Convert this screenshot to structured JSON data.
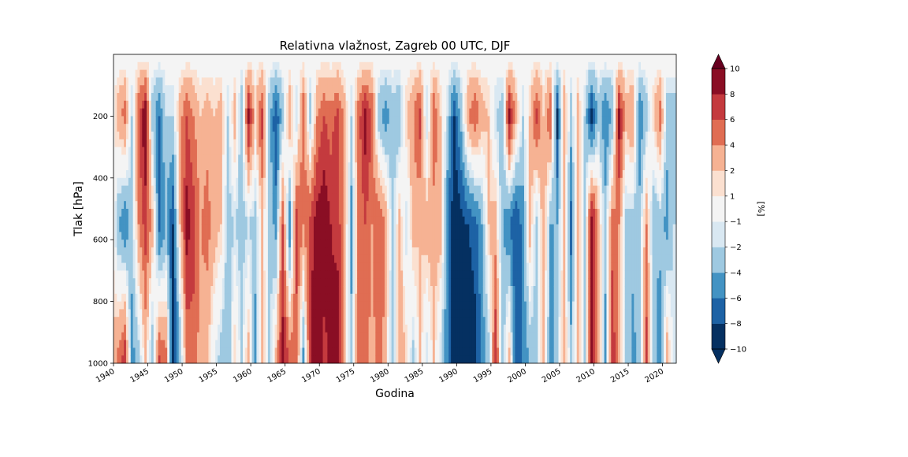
{
  "chart_data": {
    "type": "heatmap",
    "title": "Relativna vlažnost, Zagreb 00 UTC, DJF",
    "xlabel": "Godina",
    "ylabel": "Tlak [hPa]",
    "xlim": [
      1940,
      2022
    ],
    "ylim": [
      1000,
      0
    ],
    "x_ticks": [
      "1940",
      "1945",
      "1950",
      "1955",
      "1960",
      "1965",
      "1970",
      "1975",
      "1980",
      "1985",
      "1990",
      "1995",
      "2000",
      "2005",
      "2010",
      "2015",
      "2020"
    ],
    "y_ticks": [
      "200",
      "400",
      "600",
      "800",
      "1000"
    ],
    "colorbar": {
      "label": "[%]",
      "levels": [
        -10,
        -8,
        -6,
        -4,
        -2,
        -1,
        1,
        2,
        4,
        6,
        8,
        10
      ],
      "tick_labels": [
        "10",
        "8",
        "6",
        "4",
        "2",
        "1",
        "−1",
        "−2",
        "−4",
        "−6",
        "−8",
        "−10"
      ],
      "extend": "both",
      "colors": [
        "#053061",
        "#1d62a5",
        "#4393c3",
        "#9ec9e1",
        "#d9e8f2",
        "#f4f4f4",
        "#fbe0d0",
        "#f6b293",
        "#e06d53",
        "#c43a3e",
        "#8a0e24"
      ],
      "under_color": "#053061",
      "over_color": "#67001f",
      "colormap": "RdBu_r"
    },
    "grid": false,
    "columns": [
      {
        "year": 1940,
        "u": 0,
        "m": 2,
        "l": 2
      },
      {
        "year": 1941,
        "u": 3,
        "m": -4,
        "l": 5
      },
      {
        "year": 1942,
        "u": 5,
        "m": -6,
        "l": 8
      },
      {
        "year": 1943,
        "u": -2,
        "m": -3,
        "l": -5
      },
      {
        "year": 1944,
        "u": 6,
        "m": 4,
        "l": -3
      },
      {
        "year": 1945,
        "u": 10,
        "m": 7,
        "l": 2
      },
      {
        "year": 1946,
        "u": -3,
        "m": 3,
        "l": -4
      },
      {
        "year": 1947,
        "u": -6,
        "m": -7,
        "l": 7
      },
      {
        "year": 1948,
        "u": -2,
        "m": -4,
        "l": 5
      },
      {
        "year": 1949,
        "u": -2,
        "m": -8,
        "l": -10
      },
      {
        "year": 1950,
        "u": 3,
        "m": 2,
        "l": -4
      },
      {
        "year": 1951,
        "u": 6,
        "m": 9,
        "l": 4
      },
      {
        "year": 1952,
        "u": 4,
        "m": 7,
        "l": 5
      },
      {
        "year": 1953,
        "u": 2,
        "m": 4,
        "l": 3
      },
      {
        "year": 1954,
        "u": 3,
        "m": 5,
        "l": 2
      },
      {
        "year": 1955,
        "u": 2,
        "m": 3,
        "l": -1
      },
      {
        "year": 1956,
        "u": 3,
        "m": 2,
        "l": -3
      },
      {
        "year": 1957,
        "u": -2,
        "m": -3,
        "l": -4
      },
      {
        "year": 1958,
        "u": 3,
        "m": -2,
        "l": 2
      },
      {
        "year": 1959,
        "u": -4,
        "m": -3,
        "l": -2
      },
      {
        "year": 1960,
        "u": 9,
        "m": -2,
        "l": 3
      },
      {
        "year": 1961,
        "u": 2,
        "m": -3,
        "l": -5
      },
      {
        "year": 1962,
        "u": 7,
        "m": 2,
        "l": 4
      },
      {
        "year": 1963,
        "u": -3,
        "m": -2,
        "l": -3
      },
      {
        "year": 1964,
        "u": -8,
        "m": -5,
        "l": 3
      },
      {
        "year": 1965,
        "u": -3,
        "m": 6,
        "l": 9
      },
      {
        "year": 1966,
        "u": 4,
        "m": -6,
        "l": 6
      },
      {
        "year": 1967,
        "u": -2,
        "m": 7,
        "l": 5
      },
      {
        "year": 1968,
        "u": 6,
        "m": 4,
        "l": -5
      },
      {
        "year": 1969,
        "u": -3,
        "m": 7,
        "l": 8
      },
      {
        "year": 1970,
        "u": 4,
        "m": 9,
        "l": 10
      },
      {
        "year": 1971,
        "u": 6,
        "m": 10,
        "l": 7
      },
      {
        "year": 1972,
        "u": 5,
        "m": 8,
        "l": 9
      },
      {
        "year": 1973,
        "u": 7,
        "m": 7,
        "l": 10
      },
      {
        "year": 1974,
        "u": 3,
        "m": 4,
        "l": 2
      },
      {
        "year": 1975,
        "u": -2,
        "m": -5,
        "l": -3
      },
      {
        "year": 1976,
        "u": 5,
        "m": 4,
        "l": 6
      },
      {
        "year": 1977,
        "u": 9,
        "m": 6,
        "l": 5
      },
      {
        "year": 1978,
        "u": 6,
        "m": 4,
        "l": 3
      },
      {
        "year": 1979,
        "u": -3,
        "m": 6,
        "l": 5
      },
      {
        "year": 1980,
        "u": -5,
        "m": 4,
        "l": 3
      },
      {
        "year": 1981,
        "u": -3,
        "m": -3,
        "l": -4
      },
      {
        "year": 1982,
        "u": -4,
        "m": 3,
        "l": 4
      },
      {
        "year": 1983,
        "u": 2,
        "m": -2,
        "l": 2
      },
      {
        "year": 1984,
        "u": 4,
        "m": 3,
        "l": -3
      },
      {
        "year": 1985,
        "u": 7,
        "m": 2,
        "l": 2
      },
      {
        "year": 1986,
        "u": -2,
        "m": 3,
        "l": -2
      },
      {
        "year": 1987,
        "u": 6,
        "m": 3,
        "l": 2
      },
      {
        "year": 1988,
        "u": 2,
        "m": 3,
        "l": -2
      },
      {
        "year": 1989,
        "u": -2,
        "m": -6,
        "l": -6
      },
      {
        "year": 1990,
        "u": -8,
        "m": -10,
        "l": -10
      },
      {
        "year": 1991,
        "u": -3,
        "m": -9,
        "l": -10
      },
      {
        "year": 1992,
        "u": 4,
        "m": -8,
        "l": -10
      },
      {
        "year": 1993,
        "u": 6,
        "m": -7,
        "l": -9
      },
      {
        "year": 1994,
        "u": 3,
        "m": -4,
        "l": -6
      },
      {
        "year": 1995,
        "u": 2,
        "m": 2,
        "l": -3
      },
      {
        "year": 1996,
        "u": -2,
        "m": 3,
        "l": 8
      },
      {
        "year": 1997,
        "u": -3,
        "m": -4,
        "l": -3
      },
      {
        "year": 1998,
        "u": 9,
        "m": -6,
        "l": 3
      },
      {
        "year": 1999,
        "u": 3,
        "m": -8,
        "l": -8
      },
      {
        "year": 2000,
        "u": -2,
        "m": -5,
        "l": -6
      },
      {
        "year": 2001,
        "u": 2,
        "m": 3,
        "l": -4
      },
      {
        "year": 2002,
        "u": 7,
        "m": -3,
        "l": -3
      },
      {
        "year": 2003,
        "u": 2,
        "m": 4,
        "l": 3
      },
      {
        "year": 2004,
        "u": 6,
        "m": -4,
        "l": -5
      },
      {
        "year": 2005,
        "u": -9,
        "m": -4,
        "l": -3
      },
      {
        "year": 2006,
        "u": 4,
        "m": 3,
        "l": 4
      },
      {
        "year": 2007,
        "u": -3,
        "m": -7,
        "l": -3
      },
      {
        "year": 2008,
        "u": 3,
        "m": 4,
        "l": 3
      },
      {
        "year": 2009,
        "u": -2,
        "m": -3,
        "l": -2
      },
      {
        "year": 2010,
        "u": -9,
        "m": 10,
        "l": 9
      },
      {
        "year": 2011,
        "u": -3,
        "m": 3,
        "l": 4
      },
      {
        "year": 2012,
        "u": -6,
        "m": -3,
        "l": -5
      },
      {
        "year": 2013,
        "u": -4,
        "m": 5,
        "l": 8
      },
      {
        "year": 2014,
        "u": 9,
        "m": 4,
        "l": 3
      },
      {
        "year": 2015,
        "u": 3,
        "m": -3,
        "l": -2
      },
      {
        "year": 2016,
        "u": 4,
        "m": -3,
        "l": -5
      },
      {
        "year": 2017,
        "u": -6,
        "m": -3,
        "l": -3
      },
      {
        "year": 2018,
        "u": -3,
        "m": 4,
        "l": 7
      },
      {
        "year": 2019,
        "u": 2,
        "m": -4,
        "l": -3
      },
      {
        "year": 2020,
        "u": 5,
        "m": -3,
        "l": -6
      },
      {
        "year": 2021,
        "u": -3,
        "m": -5,
        "l": 4
      },
      {
        "year": 2022,
        "u": -3,
        "m": -2,
        "l": -2
      }
    ]
  }
}
